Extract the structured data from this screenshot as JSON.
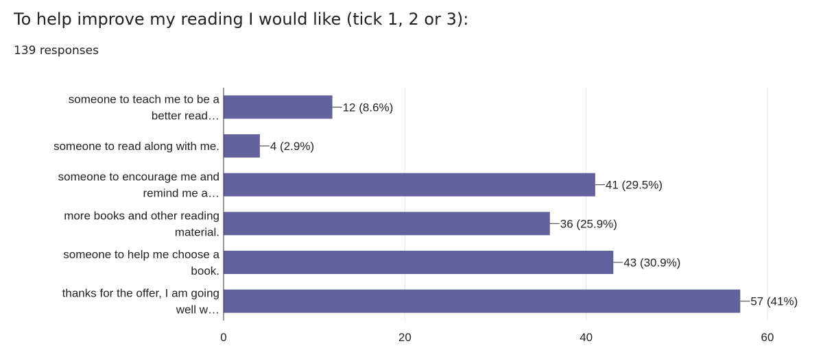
{
  "question": {
    "title": "To help improve my reading I would like (tick 1, 2 or 3):",
    "responses": "139 responses"
  },
  "colors": {
    "bar": "#62629d",
    "grid": "#e6e6e6",
    "axis": "#333333",
    "text": "#222222"
  },
  "chart_data": {
    "type": "bar",
    "orientation": "horizontal",
    "categories": [
      [
        "someone to teach me to be a",
        "better read…"
      ],
      [
        "someone to read along with me."
      ],
      [
        "someone to encourage me and",
        "remind me a…"
      ],
      [
        "more books and other reading",
        "material."
      ],
      [
        "someone to help me choose a",
        "book."
      ],
      [
        "thanks for the offer, I am going",
        "well w…"
      ]
    ],
    "values": [
      12,
      4,
      41,
      36,
      43,
      57
    ],
    "data_labels": [
      "12 (8.6%)",
      "4 (2.9%)",
      "41 (29.5%)",
      "36 (25.9%)",
      "43 (30.9%)",
      "57 (41%)"
    ],
    "xlim": [
      0,
      60
    ],
    "xticks": [
      0,
      20,
      40,
      60
    ],
    "xtick_labels": [
      "0",
      "20",
      "40",
      "60"
    ],
    "grid": true
  }
}
